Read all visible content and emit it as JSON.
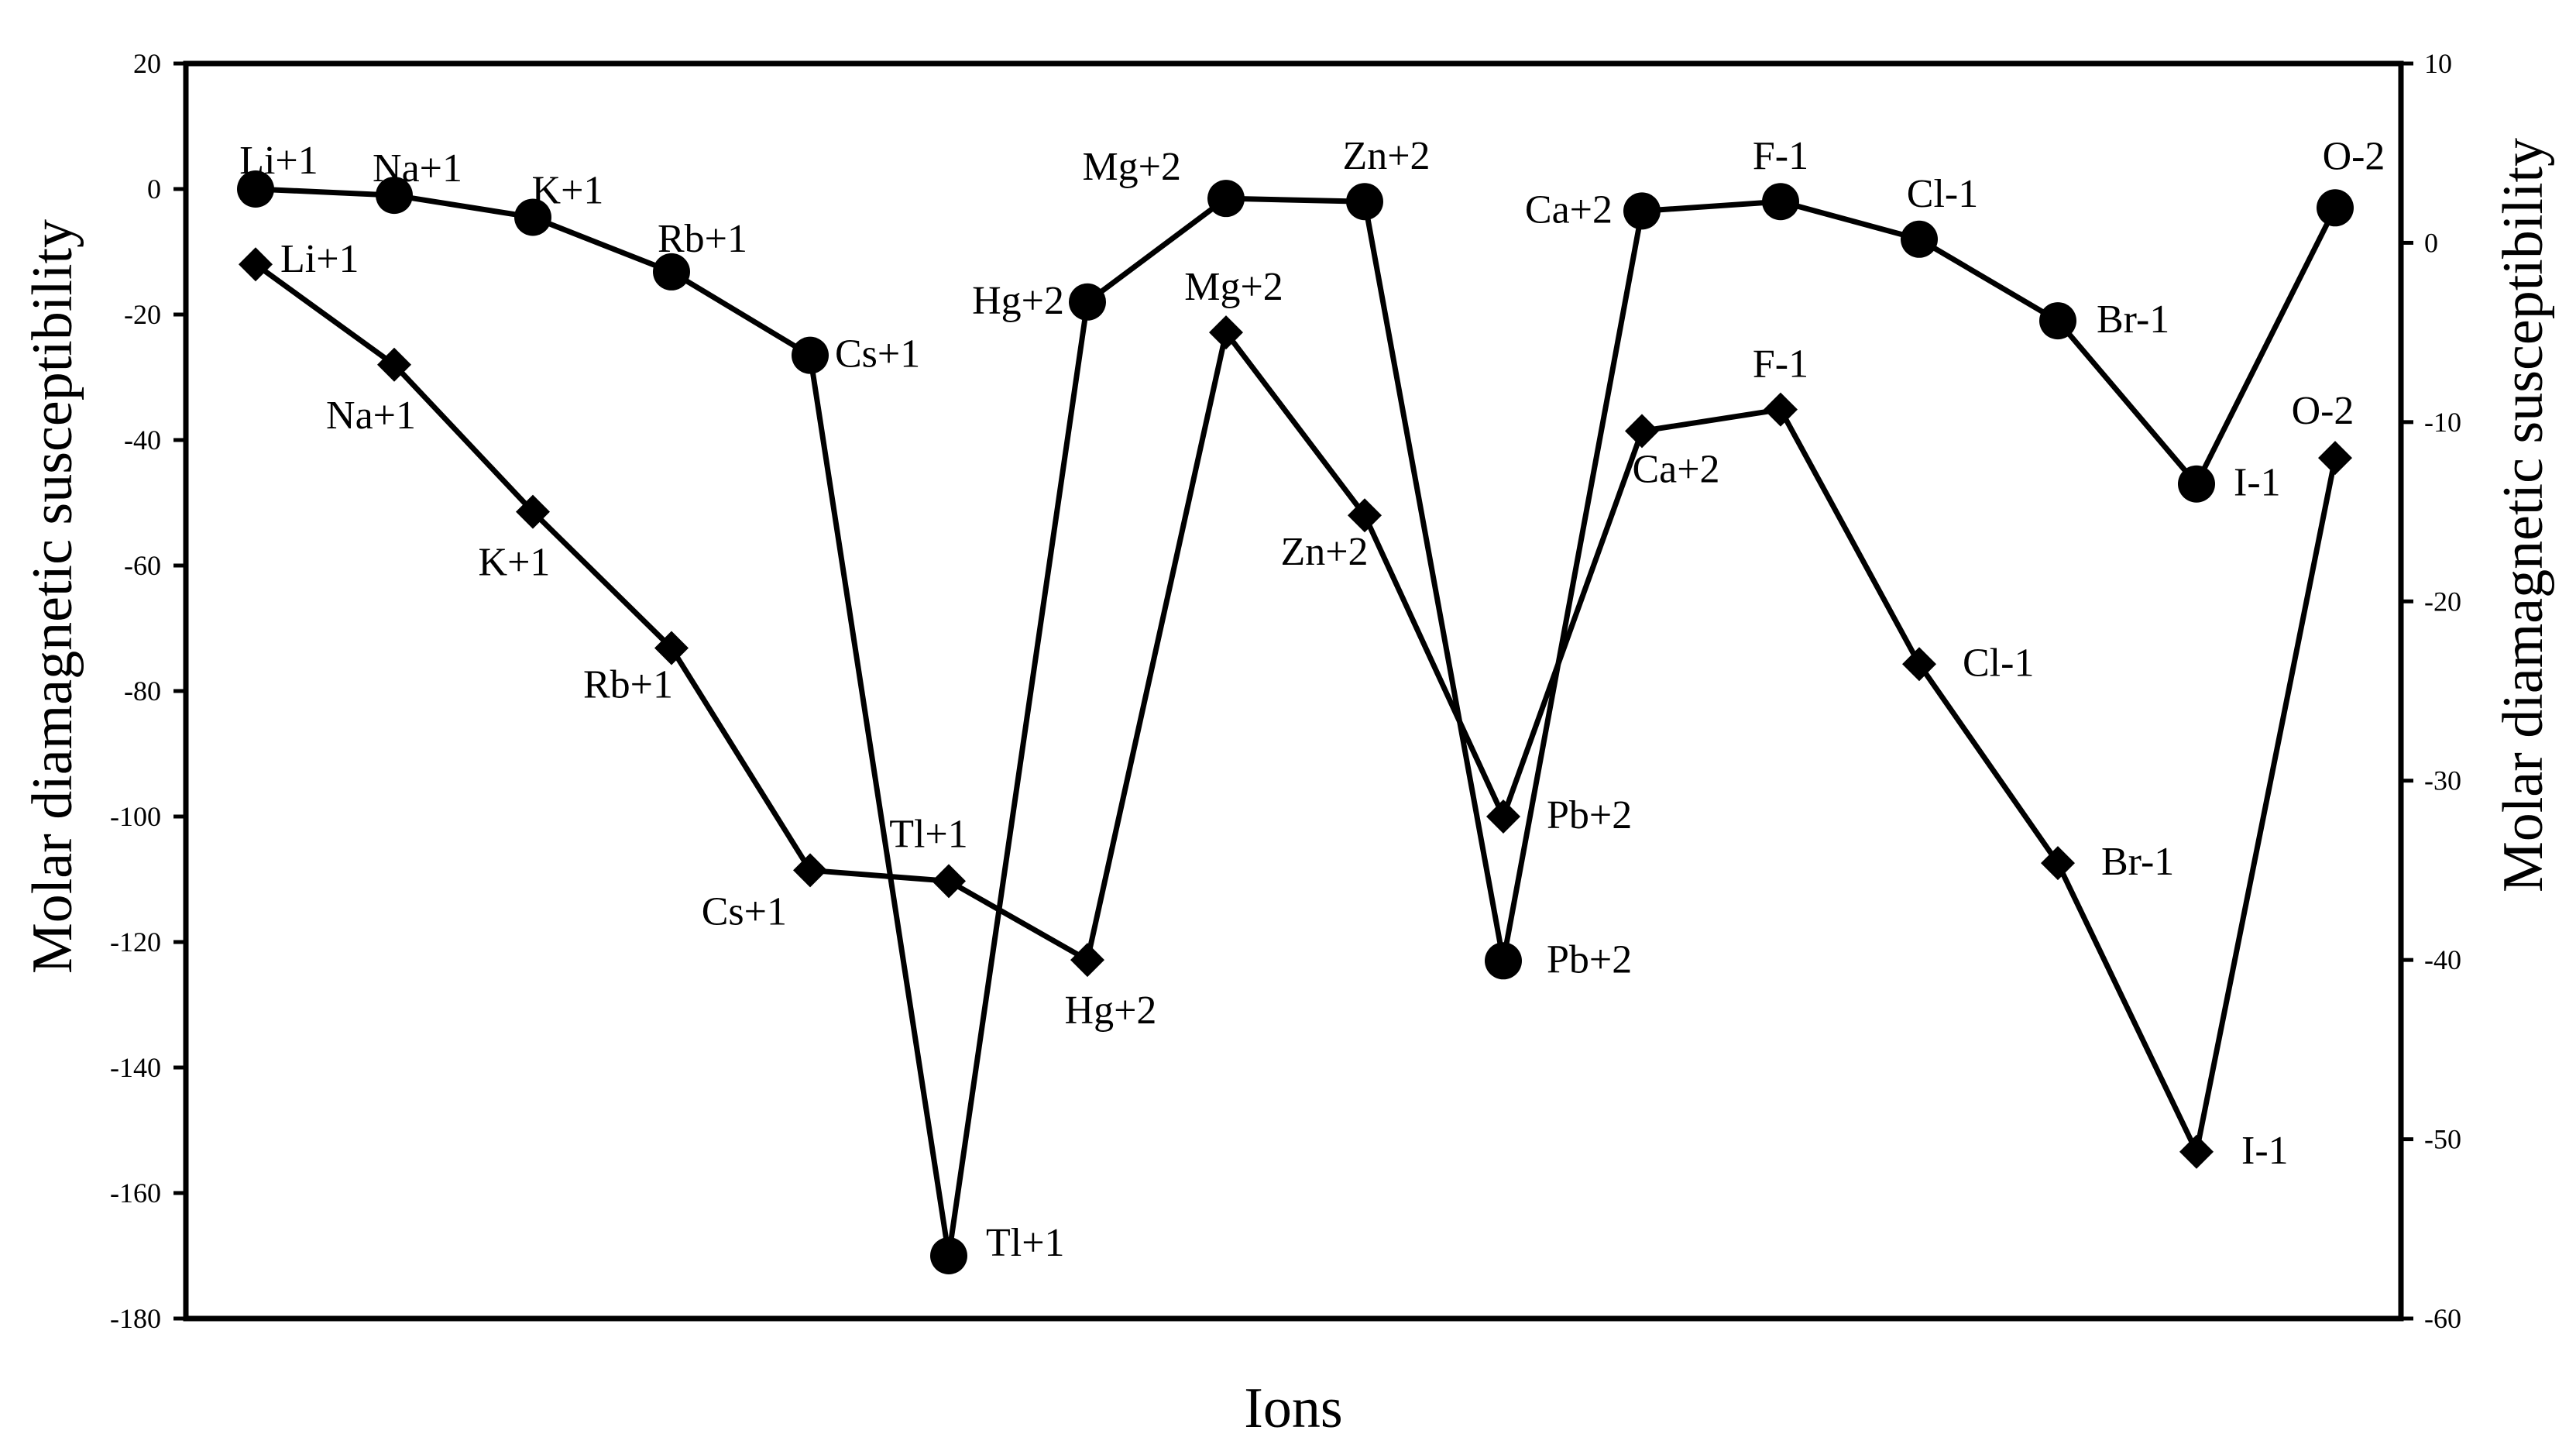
{
  "chart_data": {
    "type": "line",
    "xlabel": "Ions",
    "ylabel_left": "Molar diamagnetic susceptibility",
    "ylabel_right": "Molar diamagnetic susceptibility",
    "ylim_left": [
      -180,
      20
    ],
    "ylim_right": [
      -60,
      10
    ],
    "yticks_left": [
      "20",
      "0",
      "-20",
      "-40",
      "-60",
      "-80",
      "-100",
      "-120",
      "-140",
      "-160",
      "-180"
    ],
    "yticks_right": [
      "10",
      "0",
      "-10",
      "-20",
      "-30",
      "-40",
      "-50",
      "-60"
    ],
    "grid": false,
    "legend": "none",
    "series": [
      {
        "axis": "left",
        "marker": "circle",
        "color": "#000000",
        "points": [
          {
            "label": "Li+1",
            "value": 0
          },
          {
            "label": "Na+1",
            "value": -1
          },
          {
            "label": "K+1",
            "value": -4.5
          },
          {
            "label": "Rb+1",
            "value": -13.2
          },
          {
            "label": "Cs+1",
            "value": -26.5
          },
          {
            "label": "Tl+1",
            "value": -170
          },
          {
            "label": "Hg+2",
            "value": -18
          },
          {
            "label": "Mg+2",
            "value": -1.5
          },
          {
            "label": "Zn+2",
            "value": -2
          },
          {
            "label": "Pb+2",
            "value": -123
          },
          {
            "label": "Ca+2",
            "value": -3.5
          },
          {
            "label": "F-1",
            "value": -2
          },
          {
            "label": "Cl-1",
            "value": -8
          },
          {
            "label": "Br-1",
            "value": -21
          },
          {
            "label": "I-1",
            "value": -47
          },
          {
            "label": "O-2",
            "value": -3
          }
        ]
      },
      {
        "axis": "right",
        "marker": "diamond",
        "color": "#000000",
        "points": [
          {
            "label": "Li+1",
            "value": -1.2
          },
          {
            "label": "Na+1",
            "value": -6.8
          },
          {
            "label": "K+1",
            "value": -15
          },
          {
            "label": "Rb+1",
            "value": -22.6
          },
          {
            "label": "Cs+1",
            "value": -35
          },
          {
            "label": "Tl+1",
            "value": -35.6
          },
          {
            "label": "Hg+2",
            "value": -40
          },
          {
            "label": "Mg+2",
            "value": -5
          },
          {
            "label": "Zn+2",
            "value": -15.2
          },
          {
            "label": "Pb+2",
            "value": -32
          },
          {
            "label": "Ca+2",
            "value": -10.5
          },
          {
            "label": "F-1",
            "value": -9.3
          },
          {
            "label": "Cl-1",
            "value": -23.5
          },
          {
            "label": "Br-1",
            "value": -34.6
          },
          {
            "label": "I-1",
            "value": -50.7
          },
          {
            "label": "O-2",
            "value": -12
          }
        ]
      }
    ]
  }
}
